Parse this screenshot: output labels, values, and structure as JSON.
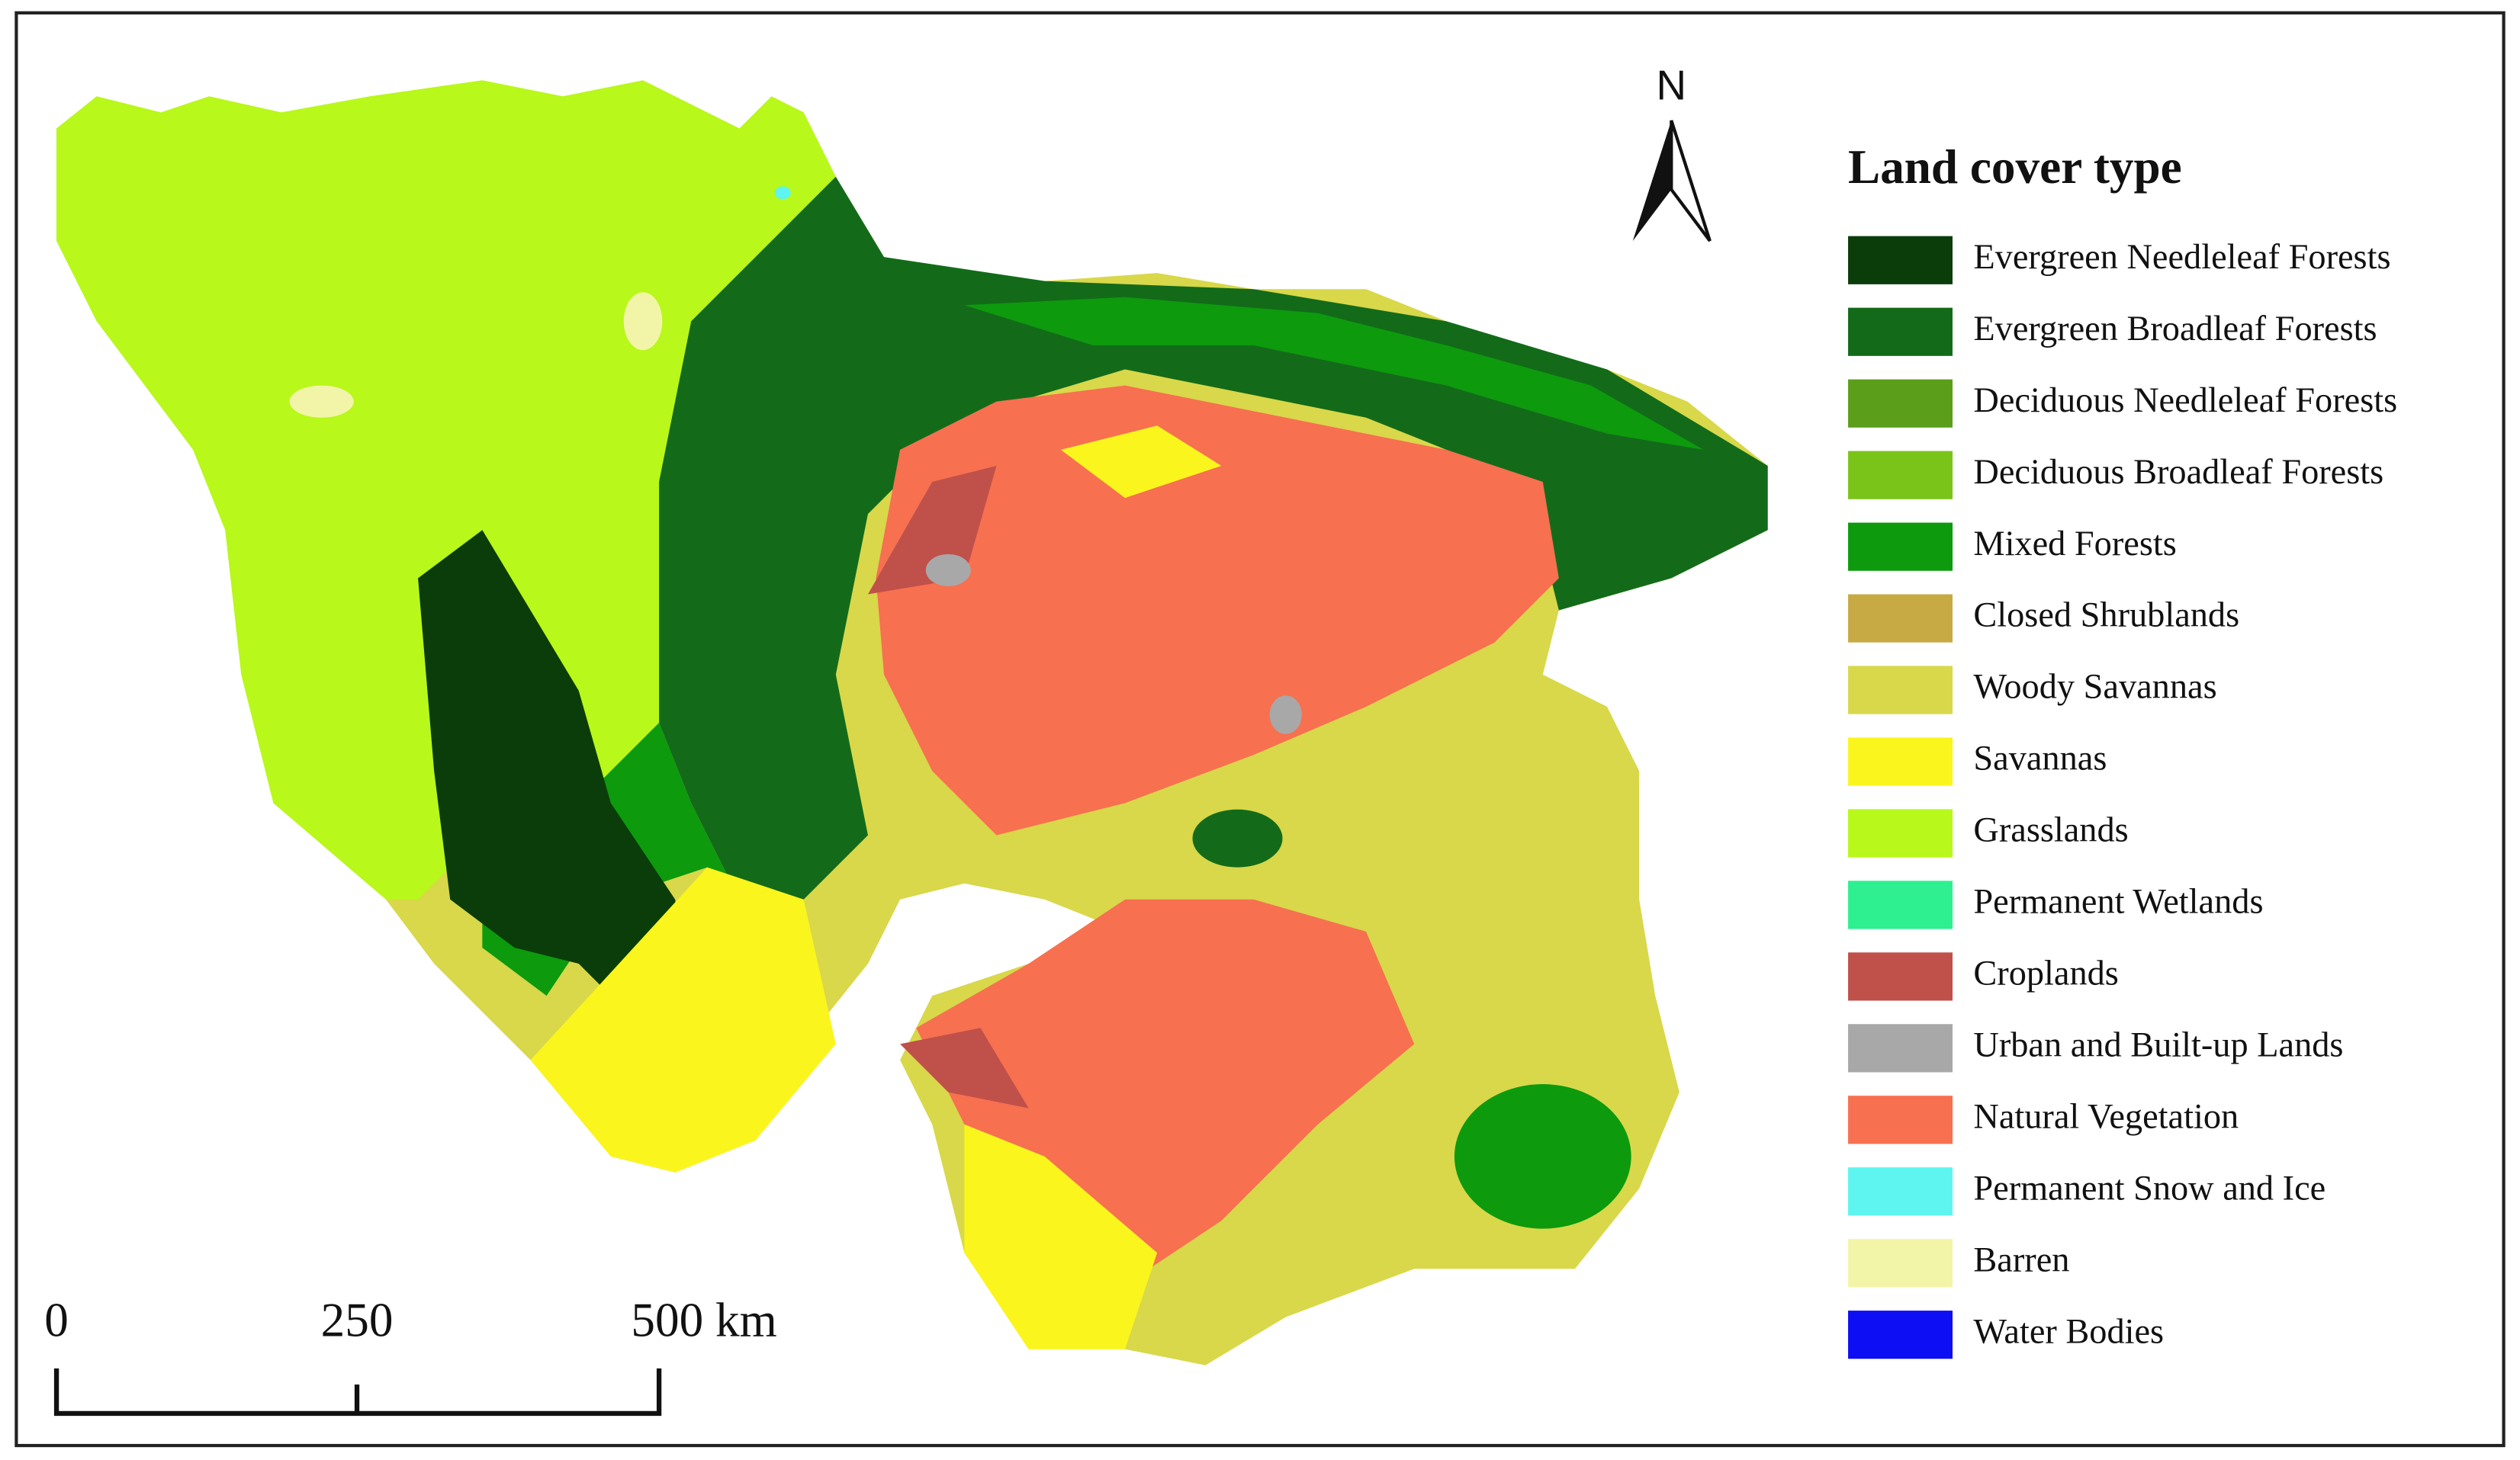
{
  "north_label": "N",
  "legend": {
    "title": "Land cover type",
    "items": [
      {
        "label": "Evergreen Needleleaf Forests",
        "color": "#0b3d0b"
      },
      {
        "label": "Evergreen Broadleaf Forests",
        "color": "#136b1a"
      },
      {
        "label": "Deciduous Needleleaf Forests",
        "color": "#5a9e1a"
      },
      {
        "label": "Deciduous Broadleaf Forests",
        "color": "#7ac41a"
      },
      {
        "label": "Mixed Forests",
        "color": "#0d9a0d"
      },
      {
        "label": "Closed Shrublands",
        "color": "#c8aa44"
      },
      {
        "label": "Woody Savannas",
        "color": "#d8d84a"
      },
      {
        "label": "Savannas",
        "color": "#fbf51e"
      },
      {
        "label": "Grasslands",
        "color": "#b8f81a"
      },
      {
        "label": "Permanent Wetlands",
        "color": "#2ef090"
      },
      {
        "label": "Croplands",
        "color": "#c0504a"
      },
      {
        "label": "Urban and Built-up Lands",
        "color": "#a8a8a8"
      },
      {
        "label": "Natural Vegetation",
        "color": "#f77050"
      },
      {
        "label": "Permanent Snow and Ice",
        "color": "#5ef5f0"
      },
      {
        "label": "Barren",
        "color": "#f2f5a8"
      },
      {
        "label": "Water Bodies",
        "color": "#0e0ef5"
      }
    ]
  },
  "scale_bar": {
    "labels": [
      "0",
      "250",
      "500 km"
    ]
  }
}
